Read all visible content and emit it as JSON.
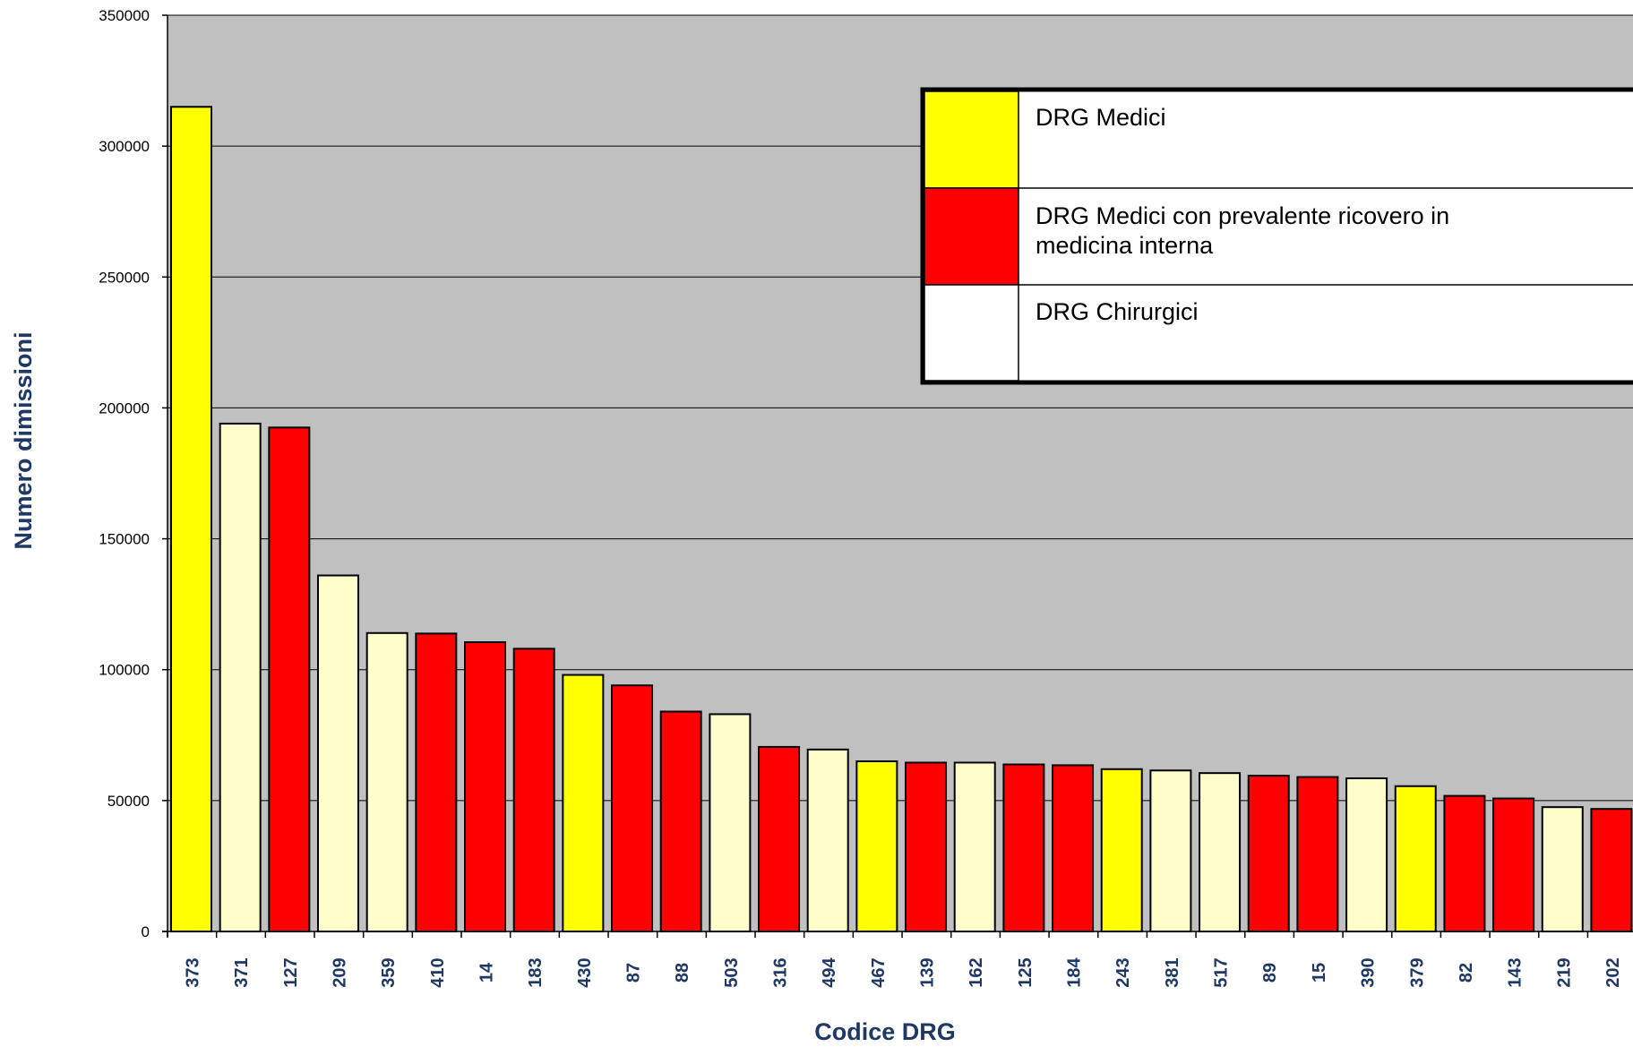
{
  "chart_data": {
    "type": "bar",
    "xlabel": "Codice DRG",
    "ylabel": "Numero dimissioni",
    "ylim": [
      0,
      350000
    ],
    "y_ticks": [
      0,
      50000,
      100000,
      150000,
      200000,
      250000,
      300000,
      350000
    ],
    "grid": true,
    "legend_position": "top-right",
    "colors": {
      "plot_background": "#c0c0c0",
      "grid": "#000000"
    },
    "legend": [
      {
        "key": "medici",
        "label": "DRG Medici",
        "color": "#ffff00"
      },
      {
        "key": "medicina_interna",
        "label": "DRG Medici con prevalente ricovero in medicina interna",
        "color": "#ff0000"
      },
      {
        "key": "chirurgici",
        "label": "DRG Chirurgici",
        "color": "#ffffcc"
      }
    ],
    "categories": [
      "373",
      "371",
      "127",
      "209",
      "359",
      "410",
      "14",
      "183",
      "430",
      "87",
      "88",
      "503",
      "316",
      "494",
      "467",
      "139",
      "162",
      "125",
      "184",
      "243",
      "381",
      "517",
      "89",
      "15",
      "390",
      "379",
      "82",
      "143",
      "219",
      "202"
    ],
    "values": [
      315000,
      194000,
      192500,
      136000,
      114000,
      113800,
      110500,
      108000,
      98000,
      94000,
      84000,
      83000,
      70500,
      69500,
      65000,
      64500,
      64500,
      63800,
      63500,
      62000,
      61500,
      60500,
      59500,
      59000,
      58500,
      55500,
      51800,
      50800,
      47500,
      46800
    ],
    "groups": [
      "medici",
      "chirurgici",
      "medicina_interna",
      "chirurgici",
      "chirurgici",
      "medicina_interna",
      "medicina_interna",
      "medicina_interna",
      "medici",
      "medicina_interna",
      "medicina_interna",
      "chirurgici",
      "medicina_interna",
      "chirurgici",
      "medici",
      "medicina_interna",
      "chirurgici",
      "medicina_interna",
      "medicina_interna",
      "medici",
      "chirurgici",
      "chirurgici",
      "medicina_interna",
      "medicina_interna",
      "chirurgici",
      "medici",
      "medicina_interna",
      "medicina_interna",
      "chirurgici",
      "medicina_interna"
    ]
  }
}
